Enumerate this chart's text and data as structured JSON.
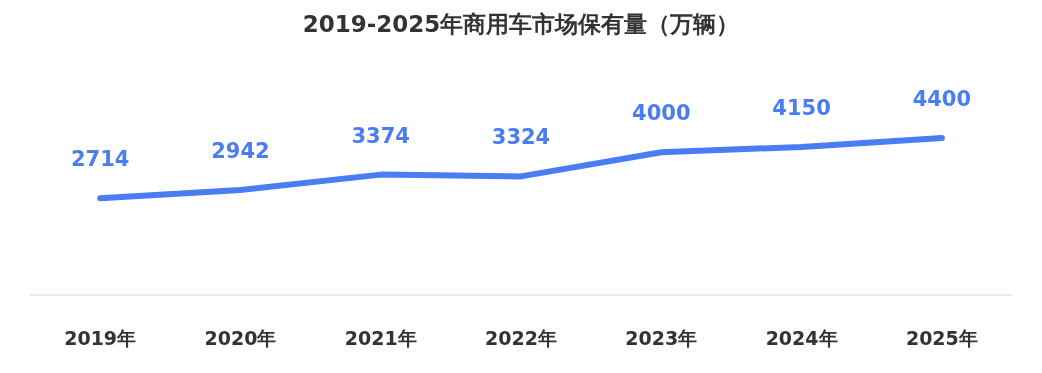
{
  "chart_data": {
    "type": "line",
    "title": "2019-2025年商用车市场保有量（万辆）",
    "categories": [
      "2019年",
      "2020年",
      "2021年",
      "2022年",
      "2023年",
      "2024年",
      "2025年"
    ],
    "values": [
      2714,
      2942,
      3374,
      3324,
      4000,
      4150,
      4400
    ],
    "color": "#4a7cf4",
    "data_labels": true,
    "tick_labels": "x"
  }
}
